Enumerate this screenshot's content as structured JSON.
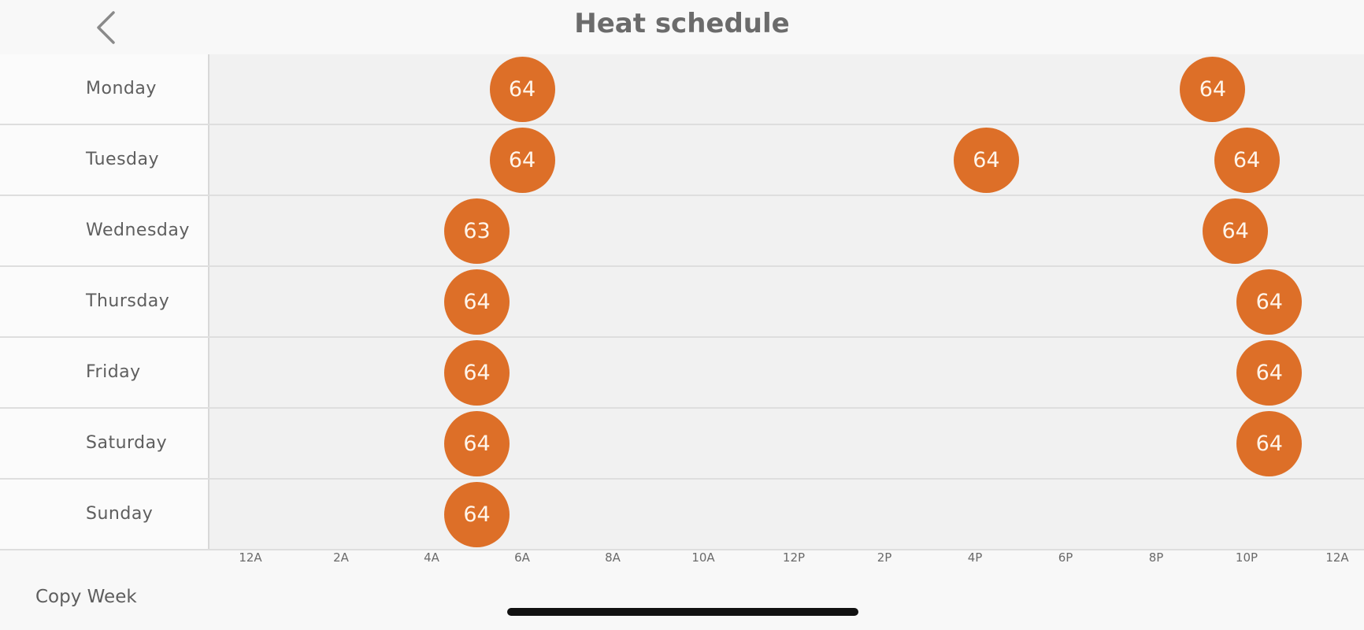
{
  "header": {
    "title": "Heat schedule",
    "back_icon": "chevron-left-icon"
  },
  "colors": {
    "setpoint": "#dd6f28",
    "timeline_bg": "#f1f1f1"
  },
  "axis": {
    "ticks": [
      "12A",
      "2A",
      "4A",
      "6A",
      "8A",
      "10A",
      "12P",
      "2P",
      "4P",
      "6P",
      "8P",
      "10P",
      "12A"
    ]
  },
  "days": [
    {
      "name": "Monday",
      "setpoints": [
        {
          "hour": 6,
          "temp": "64"
        },
        {
          "hour": 21.25,
          "temp": "64"
        }
      ]
    },
    {
      "name": "Tuesday",
      "setpoints": [
        {
          "hour": 6,
          "temp": "64"
        },
        {
          "hour": 16.25,
          "temp": "64"
        },
        {
          "hour": 22,
          "temp": "64"
        }
      ]
    },
    {
      "name": "Wednesday",
      "setpoints": [
        {
          "hour": 5,
          "temp": "63"
        },
        {
          "hour": 21.75,
          "temp": "64"
        }
      ]
    },
    {
      "name": "Thursday",
      "setpoints": [
        {
          "hour": 5,
          "temp": "64"
        },
        {
          "hour": 22.5,
          "temp": "64"
        }
      ]
    },
    {
      "name": "Friday",
      "setpoints": [
        {
          "hour": 5,
          "temp": "64"
        },
        {
          "hour": 22.5,
          "temp": "64"
        }
      ]
    },
    {
      "name": "Saturday",
      "setpoints": [
        {
          "hour": 5,
          "temp": "64"
        },
        {
          "hour": 22.5,
          "temp": "64"
        }
      ]
    },
    {
      "name": "Sunday",
      "setpoints": [
        {
          "hour": 5,
          "temp": "64"
        }
      ]
    }
  ],
  "footer": {
    "copy_week_label": "Copy Week"
  }
}
